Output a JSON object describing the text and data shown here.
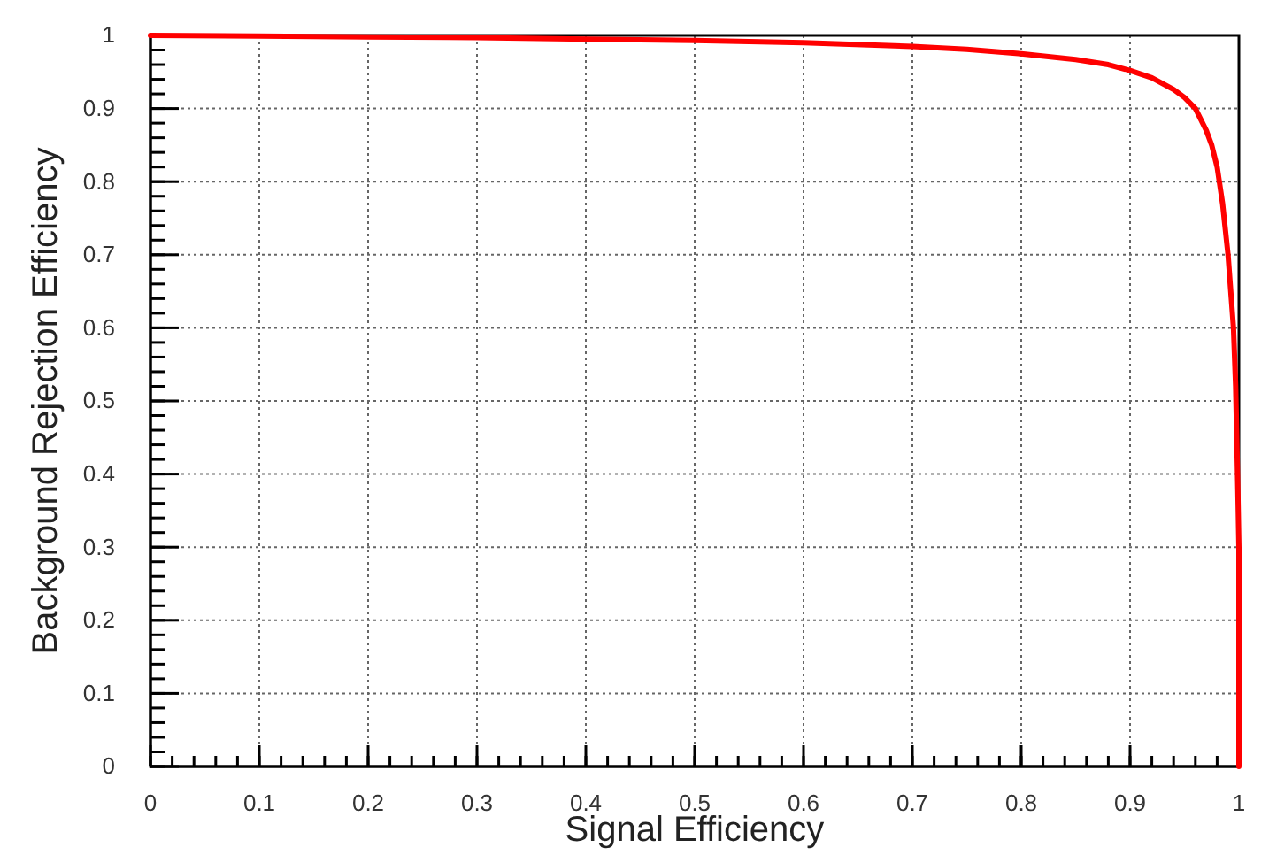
{
  "chart_data": {
    "type": "line",
    "xlabel": "Signal Efficiency",
    "ylabel": "Background Rejection Efficiency",
    "xlim": [
      0,
      1
    ],
    "ylim": [
      0,
      1
    ],
    "xticks": [
      0,
      0.1,
      0.2,
      0.3,
      0.4,
      0.5,
      0.6,
      0.7,
      0.8,
      0.9,
      1
    ],
    "yticks": [
      0,
      0.1,
      0.2,
      0.3,
      0.4,
      0.5,
      0.6,
      0.7,
      0.8,
      0.9,
      1
    ],
    "grid": true,
    "marker": "none",
    "line_style": "solid",
    "series": [
      {
        "color": "#ff0000",
        "x": [
          0,
          0.1,
          0.2,
          0.3,
          0.4,
          0.5,
          0.6,
          0.7,
          0.75,
          0.8,
          0.85,
          0.88,
          0.9,
          0.92,
          0.94,
          0.95,
          0.96,
          0.97,
          0.975,
          0.98,
          0.985,
          0.99,
          0.993,
          0.995,
          0.997,
          0.998,
          0.999,
          1,
          1
        ],
        "values": [
          1,
          0.999,
          0.998,
          0.997,
          0.995,
          0.993,
          0.99,
          0.985,
          0.981,
          0.975,
          0.967,
          0.96,
          0.952,
          0.942,
          0.926,
          0.915,
          0.9,
          0.87,
          0.85,
          0.82,
          0.77,
          0.7,
          0.64,
          0.6,
          0.52,
          0.45,
          0.38,
          0.3,
          0
        ]
      }
    ]
  }
}
